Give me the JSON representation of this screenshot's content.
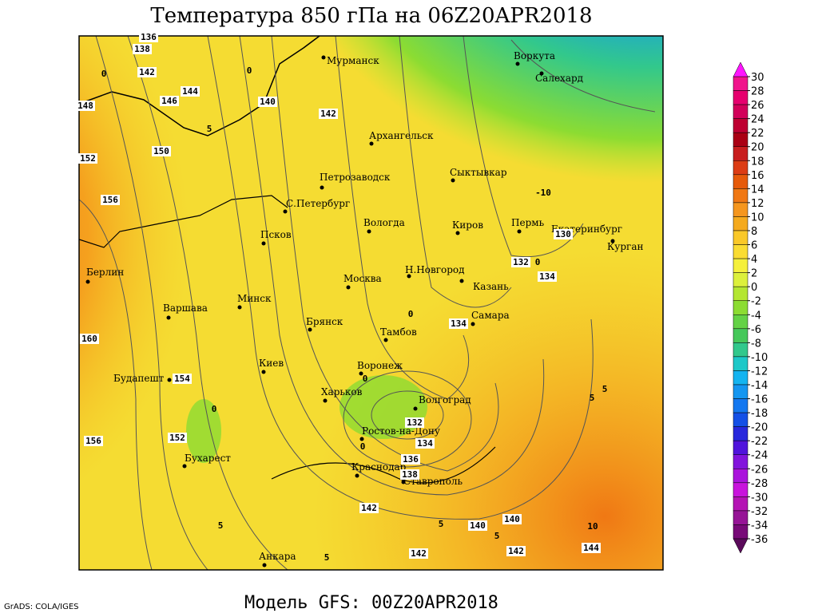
{
  "title": "Температура 850 гПа на 06Z20APR2018",
  "footer": "Модель GFS: 00Z20APR2018",
  "credit": "GrADS: COLA/IGES",
  "cities": [
    "Мурманск",
    "Воркута",
    "Салехард",
    "Архангельск",
    "Петрозаводск",
    "Сыктывкар",
    "С.Петербург",
    "Вологда",
    "Киров",
    "Пермь",
    "Екатеринбург",
    "Курган",
    "Псков",
    "Н.Новгород",
    "Москва",
    "Казань",
    "Берлин",
    "Варшава",
    "Минск",
    "Брянск",
    "Тамбов",
    "Самара",
    "Киев",
    "Воронеж",
    "Будапешт",
    "Харьков",
    "Волгоград",
    "Бухарест",
    "Ростов-на-Дону",
    "Краснодар",
    "Ставрополь",
    "Анкара"
  ],
  "contour_labels": [
    136,
    138,
    142,
    144,
    146,
    140,
    142,
    150,
    152,
    156,
    160,
    154,
    152,
    156,
    134,
    132,
    134,
    130,
    132,
    134,
    136,
    138,
    142,
    140,
    140,
    142,
    142,
    144,
    148
  ],
  "isotherm_labels": [
    0,
    0,
    5,
    -10,
    0,
    0,
    0,
    0,
    0,
    5,
    5,
    5,
    5,
    5,
    10,
    5
  ],
  "colorbar": {
    "levels": [
      30,
      28,
      26,
      24,
      22,
      20,
      18,
      16,
      14,
      12,
      10,
      8,
      6,
      4,
      2,
      0,
      -2,
      -4,
      -6,
      -8,
      -10,
      -12,
      -14,
      -16,
      -18,
      -20,
      -22,
      -24,
      -26,
      -28,
      -30,
      -32,
      -34,
      -36
    ],
    "colors": [
      "#f0148c",
      "#e6006e",
      "#d2005a",
      "#be0032",
      "#aa0014",
      "#c81e1e",
      "#dc3c14",
      "#e65a0a",
      "#f07814",
      "#f5961e",
      "#f5aa1e",
      "#fac828",
      "#fadc32",
      "#f5f03c",
      "#dcf03c",
      "#b4e632",
      "#8cdc32",
      "#64d246",
      "#46c85a",
      "#32c88c",
      "#1ec8c8",
      "#14b4f0",
      "#1496f0",
      "#1478f0",
      "#1450e6",
      "#2828dc",
      "#5014dc",
      "#8214dc",
      "#aa14dc",
      "#c814dc",
      "#b414b4",
      "#961496",
      "#780a78"
    ],
    "over_color": "#ff14ff",
    "under_color": "#5a0a5a"
  }
}
